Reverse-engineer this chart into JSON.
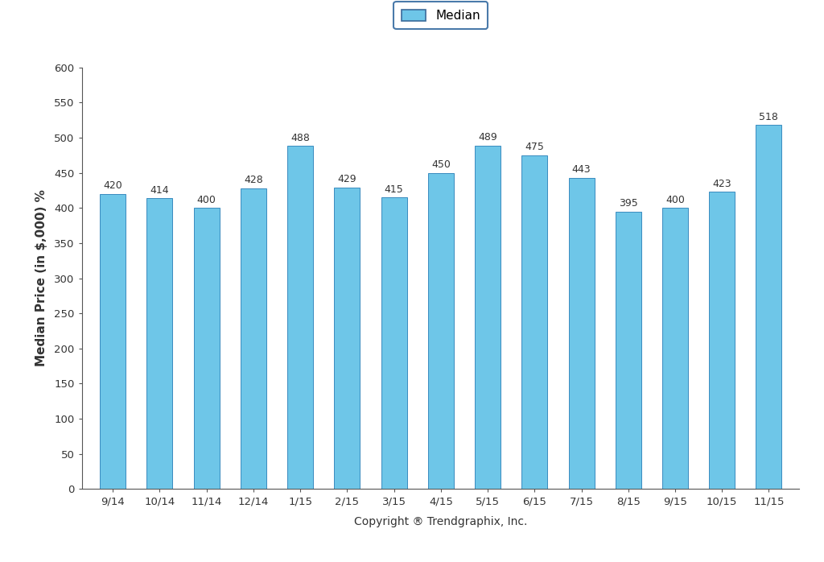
{
  "categories": [
    "9/14",
    "10/14",
    "11/14",
    "12/14",
    "1/15",
    "2/15",
    "3/15",
    "4/15",
    "5/15",
    "6/15",
    "7/15",
    "8/15",
    "9/15",
    "10/15",
    "11/15"
  ],
  "values": [
    420,
    414,
    400,
    428,
    488,
    429,
    415,
    450,
    489,
    475,
    443,
    395,
    400,
    423,
    518
  ],
  "bar_color": "#6EC6E8",
  "bar_edge_color": "#3A8BBF",
  "ylabel": "Median Price (in $,000) %",
  "xlabel": "Copyright ® Trendgraphix, Inc.",
  "ylim": [
    0,
    600
  ],
  "yticks": [
    0,
    50,
    100,
    150,
    200,
    250,
    300,
    350,
    400,
    450,
    500,
    550,
    600
  ],
  "legend_label": "Median",
  "legend_box_color": "#6EC6E8",
  "legend_box_edge": "#3A6A9A",
  "legend_frame_edge": "#4A7AAA",
  "background_color": "#ffffff",
  "bar_width": 0.55,
  "label_fontsize": 9,
  "axis_label_fontsize": 11,
  "tick_fontsize": 9.5,
  "xlabel_fontsize": 10,
  "value_label_color": "#333333"
}
